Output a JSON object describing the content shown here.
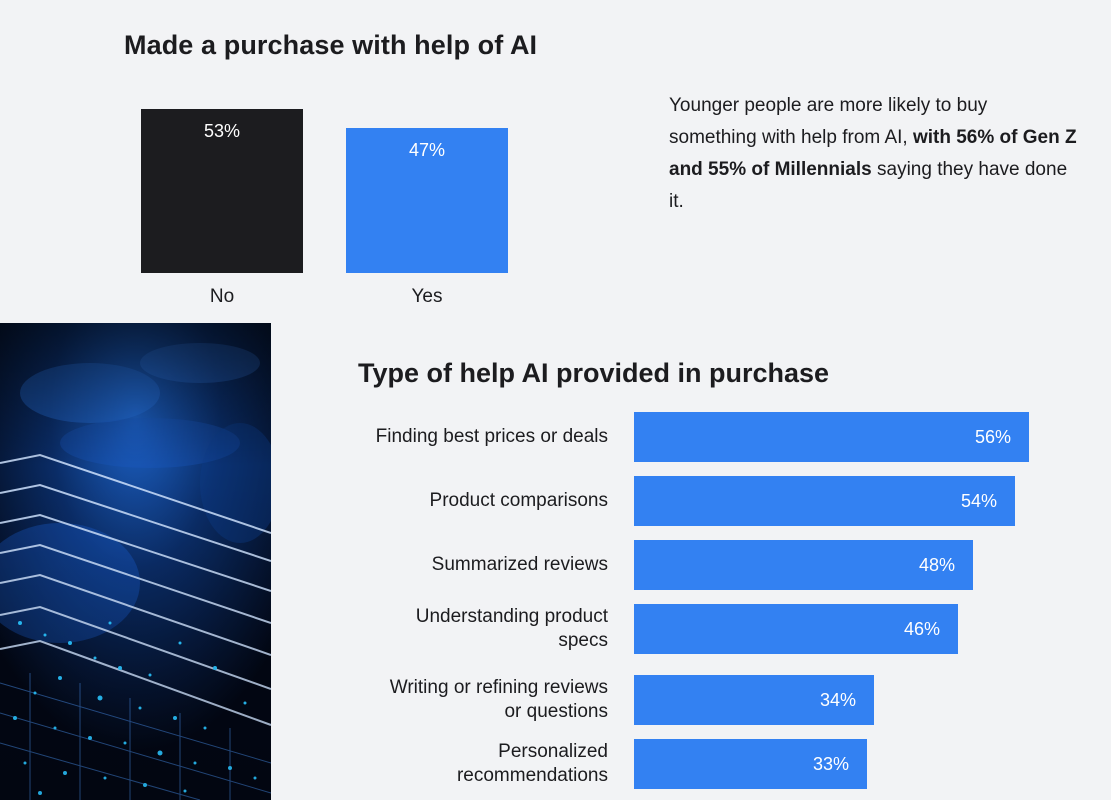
{
  "colors": {
    "background": "#f2f3f5",
    "bar_dark": "#1c1c1f",
    "bar_blue": "#3381f2",
    "text": "#1c1c1f"
  },
  "note": {
    "text_before": "Younger people are more likely to buy something with help from AI, ",
    "text_bold": "with 56% of Gen Z and 55% of Millennials",
    "text_after": " saying they have done it."
  },
  "image": {
    "icon": "circuit-board-photo"
  },
  "chart_data": [
    {
      "type": "bar",
      "title": "Made a purchase with help of AI",
      "categories": [
        "No",
        "Yes"
      ],
      "values": [
        53,
        47
      ],
      "value_labels": [
        "53%",
        "47%"
      ],
      "ylim": [
        0,
        100
      ]
    },
    {
      "type": "bar",
      "orientation": "horizontal",
      "title": "Type of help AI provided in purchase",
      "categories": [
        "Finding best prices or deals",
        "Product comparisons",
        "Summarized reviews",
        "Understanding product specs",
        "Writing or refining reviews or questions",
        "Personalized recommendations"
      ],
      "values": [
        56,
        54,
        48,
        46,
        34,
        33
      ],
      "value_labels": [
        "56%",
        "54%",
        "48%",
        "46%",
        "34%",
        "33%"
      ],
      "xlim": [
        0,
        100
      ]
    }
  ]
}
